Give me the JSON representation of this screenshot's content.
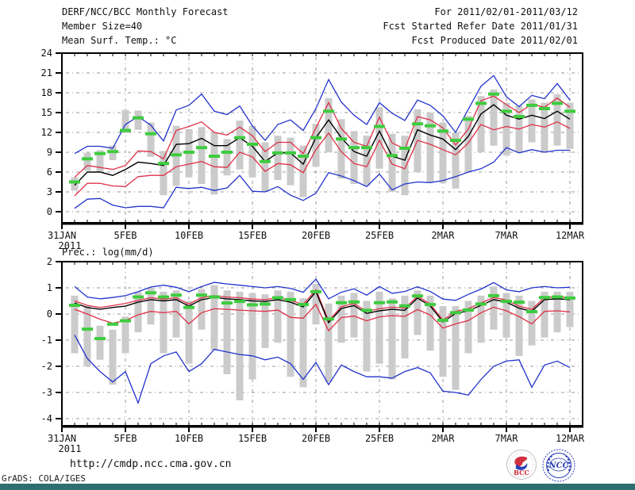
{
  "header": {
    "title": "DERF/NCC/BCC Monthly Forecast",
    "member_size": "Member Size=40",
    "period": "For 2011/02/01-2011/03/12",
    "refer_date": "Fcst Started Refer Date 2011/01/31",
    "produced_date": "Fcst Produced Date 2011/02/01"
  },
  "footer": {
    "url": "http://cmdp.ncc.cma.gov.cn",
    "grads_credit": "GrADS: COLA/IGES",
    "logos": [
      {
        "name": "bcc-logo",
        "label": "BCC"
      },
      {
        "name": "ncc-logo",
        "label": "NCC"
      }
    ]
  },
  "colors": {
    "blue": "#2233cc",
    "red": "#e03048",
    "green": "#3ecc3e",
    "black": "#000000",
    "bar": "#cbcbcb",
    "grid": "#999999",
    "frame": "#000000",
    "text": "#111111",
    "logo_blue": "#2a3fb8",
    "logo_red": "#cc2233",
    "strip": "#2e6e6e"
  },
  "chart_data": [
    {
      "type": "line",
      "title": "Mean Surf. Temp.: °C",
      "x_ticklabels": [
        "31JAN",
        "5FEB",
        "10FEB",
        "15FEB",
        "20FEB",
        "25FEB",
        "2MAR",
        "7MAR",
        "12MAR"
      ],
      "x_tick_days": [
        0,
        5,
        10,
        15,
        20,
        25,
        30,
        35,
        40
      ],
      "x_year": "2011",
      "x_range_days": [
        0,
        41
      ],
      "ylim": [
        -1.7,
        24
      ],
      "yticks": [
        0,
        3,
        6,
        9,
        12,
        15,
        18,
        21,
        24
      ],
      "grid": true,
      "legend": "none",
      "series": [
        {
          "name": "ensemble-max",
          "color": "blue",
          "values": [
            8.8,
            9.9,
            9.9,
            9.6,
            13.2,
            14.4,
            13.1,
            10.7,
            15.4,
            16.1,
            17.8,
            15.2,
            14.7,
            16.0,
            13.0,
            10.8,
            13.2,
            13.9,
            12.3,
            15.6,
            20.0,
            16.6,
            14.6,
            13.2,
            16.5,
            14.9,
            13.8,
            16.9,
            16.1,
            14.5,
            12.0,
            15.5,
            19.0,
            20.6,
            17.4,
            15.9,
            17.6,
            17.1,
            19.4,
            16.9
          ]
        },
        {
          "name": "percentile-upper",
          "color": "red",
          "values": [
            5.2,
            7.0,
            6.7,
            6.4,
            7.0,
            9.2,
            9.1,
            8.0,
            12.3,
            12.9,
            13.6,
            12.0,
            11.6,
            12.8,
            11.5,
            9.1,
            10.5,
            10.5,
            8.8,
            12.7,
            16.5,
            12.6,
            10.5,
            9.9,
            14.3,
            10.4,
            9.5,
            14.4,
            13.9,
            12.7,
            10.1,
            12.5,
            16.8,
            17.5,
            16.2,
            15.0,
            16.3,
            15.8,
            17.2,
            15.8
          ]
        },
        {
          "name": "ensemble-mean",
          "color": "black",
          "values": [
            4.0,
            6.0,
            6.0,
            5.5,
            6.4,
            7.5,
            7.3,
            7.0,
            10.2,
            10.3,
            11.1,
            10.0,
            10.0,
            11.2,
            9.9,
            7.6,
            8.9,
            8.9,
            7.2,
            11.2,
            13.9,
            11.2,
            9.1,
            8.4,
            12.2,
            8.4,
            7.8,
            12.4,
            11.6,
            11.0,
            9.4,
            11.4,
            14.8,
            16.2,
            14.6,
            14.0,
            14.6,
            14.1,
            15.2,
            14.0
          ]
        },
        {
          "name": "percentile-lower",
          "color": "red",
          "values": [
            2.4,
            4.3,
            4.3,
            3.9,
            3.8,
            5.3,
            5.5,
            5.5,
            6.8,
            7.2,
            7.6,
            6.8,
            6.7,
            9.0,
            8.3,
            6.1,
            7.3,
            7.1,
            5.9,
            9.4,
            11.9,
            9.1,
            7.3,
            6.8,
            10.8,
            7.2,
            6.5,
            10.8,
            10.2,
            9.4,
            8.6,
            10.4,
            13.2,
            12.4,
            12.9,
            12.5,
            13.2,
            12.8,
            13.6,
            12.6
          ]
        },
        {
          "name": "ensemble-min",
          "color": "blue",
          "values": [
            0.5,
            1.9,
            2.0,
            1.0,
            0.6,
            0.8,
            0.8,
            0.6,
            3.7,
            3.5,
            3.7,
            3.2,
            3.6,
            5.5,
            3.1,
            3.0,
            3.8,
            2.5,
            1.7,
            2.8,
            5.9,
            5.4,
            4.7,
            3.8,
            5.7,
            3.3,
            4.2,
            4.5,
            4.4,
            4.7,
            5.3,
            6.0,
            6.5,
            7.5,
            9.7,
            8.9,
            9.4,
            9.0,
            9.3,
            9.3
          ]
        },
        {
          "name": "observation",
          "color": "green",
          "marker": "dash",
          "values": [
            4.5,
            8.0,
            8.8,
            9.1,
            12.3,
            14.2,
            11.8,
            7.3,
            8.6,
            9.0,
            9.7,
            8.4,
            9.0,
            11.2,
            10.2,
            7.6,
            8.9,
            8.9,
            8.4,
            11.2,
            15.2,
            11.0,
            9.7,
            9.7,
            12.9,
            8.5,
            9.6,
            13.3,
            13.0,
            12.2,
            10.8,
            14.0,
            16.4,
            17.8,
            15.2,
            14.4,
            16.1,
            15.6,
            16.4,
            15.2
          ]
        }
      ],
      "bars": {
        "name": "ensemble-spread-bar",
        "ranges": [
          [
            3.2,
            5.2
          ],
          [
            6.2,
            8.9
          ],
          [
            6.0,
            9.3
          ],
          [
            7.8,
            10.0
          ],
          [
            11.9,
            15.4
          ],
          [
            12.4,
            15.3
          ],
          [
            8.3,
            13.5
          ],
          [
            2.5,
            9.2
          ],
          [
            3.9,
            13.0
          ],
          [
            5.2,
            12.5
          ],
          [
            4.2,
            12.8
          ],
          [
            2.6,
            12.0
          ],
          [
            5.5,
            11.0
          ],
          [
            6.4,
            13.8
          ],
          [
            5.2,
            13.0
          ],
          [
            3.0,
            10.5
          ],
          [
            4.8,
            11.5
          ],
          [
            4.0,
            11.2
          ],
          [
            2.2,
            10.0
          ],
          [
            6.8,
            13.3
          ],
          [
            9.0,
            17.2
          ],
          [
            5.0,
            14.0
          ],
          [
            4.2,
            12.2
          ],
          [
            4.0,
            11.5
          ],
          [
            6.5,
            15.8
          ],
          [
            3.0,
            11.8
          ],
          [
            2.5,
            11.5
          ],
          [
            6.0,
            15.5
          ],
          [
            4.5,
            15.0
          ],
          [
            4.3,
            13.5
          ],
          [
            3.5,
            12.0
          ],
          [
            6.0,
            14.5
          ],
          [
            9.0,
            17.5
          ],
          [
            10.0,
            18.5
          ],
          [
            8.5,
            16.5
          ],
          [
            9.0,
            16.0
          ],
          [
            10.5,
            17.0
          ],
          [
            9.0,
            16.5
          ],
          [
            10.0,
            17.8
          ],
          [
            9.5,
            16.5
          ]
        ]
      }
    },
    {
      "type": "line",
      "title": "Prec.: log(mm/d)",
      "x_ticklabels": [
        "31JAN",
        "5FEB",
        "10FEB",
        "15FEB",
        "20FEB",
        "25FEB",
        "2MAR",
        "7MAR",
        "12MAR"
      ],
      "x_tick_days": [
        0,
        5,
        10,
        15,
        20,
        25,
        30,
        35,
        40
      ],
      "x_year": "2011",
      "x_range_days": [
        0,
        41
      ],
      "ylim": [
        -4.27,
        2
      ],
      "yticks": [
        2,
        1,
        0,
        -1,
        -2,
        -3,
        -4
      ],
      "grid": true,
      "legend": "none",
      "series": [
        {
          "name": "ensemble-max",
          "color": "blue",
          "values": [
            1.05,
            0.65,
            0.58,
            0.63,
            0.7,
            0.85,
            1.03,
            1.1,
            1.02,
            0.85,
            1.05,
            1.21,
            1.15,
            1.1,
            1.05,
            1.0,
            1.05,
            0.98,
            0.83,
            1.33,
            0.58,
            0.83,
            0.96,
            0.72,
            1.05,
            0.79,
            0.86,
            1.04,
            0.86,
            0.57,
            0.52,
            0.75,
            0.95,
            1.2,
            0.92,
            0.85,
            1.0,
            1.05,
            1.0,
            1.02
          ]
        },
        {
          "name": "percentile-upper",
          "color": "red",
          "values": [
            0.5,
            0.33,
            0.25,
            0.32,
            0.4,
            0.52,
            0.62,
            0.57,
            0.62,
            0.38,
            0.62,
            0.7,
            0.65,
            0.62,
            0.57,
            0.55,
            0.62,
            0.52,
            0.36,
            0.93,
            -0.26,
            0.28,
            0.4,
            0.1,
            0.2,
            0.26,
            0.22,
            0.68,
            0.38,
            -0.23,
            0.1,
            0.2,
            0.42,
            0.63,
            0.53,
            0.3,
            0.18,
            0.63,
            0.66,
            0.63
          ]
        },
        {
          "name": "ensemble-mean",
          "color": "black",
          "values": [
            0.42,
            0.25,
            0.18,
            0.25,
            0.3,
            0.45,
            0.55,
            0.5,
            0.55,
            0.3,
            0.55,
            0.63,
            0.58,
            0.55,
            0.5,
            0.48,
            0.55,
            0.45,
            0.27,
            0.85,
            -0.33,
            0.21,
            0.32,
            0.02,
            0.12,
            0.18,
            0.14,
            0.61,
            0.31,
            -0.3,
            0.02,
            0.12,
            0.33,
            0.55,
            0.45,
            0.22,
            0.1,
            0.55,
            0.58,
            0.55
          ]
        },
        {
          "name": "percentile-lower",
          "color": "red",
          "values": [
            0.18,
            0.0,
            -0.2,
            -0.35,
            -0.25,
            -0.03,
            0.1,
            0.05,
            0.1,
            -0.38,
            0.05,
            0.2,
            0.18,
            0.15,
            0.12,
            0.1,
            0.15,
            -0.13,
            -0.16,
            0.37,
            -0.64,
            -0.14,
            -0.08,
            -0.26,
            -0.11,
            -0.06,
            -0.09,
            0.17,
            -0.04,
            -0.54,
            -0.38,
            -0.25,
            0.05,
            0.26,
            0.12,
            -0.1,
            -0.38,
            0.1,
            0.12,
            0.08
          ]
        },
        {
          "name": "ensemble-min",
          "color": "blue",
          "values": [
            -0.8,
            -1.7,
            -2.2,
            -2.6,
            -2.2,
            -3.4,
            -1.9,
            -1.6,
            -1.45,
            -2.2,
            -1.9,
            -1.35,
            -1.45,
            -1.55,
            -1.6,
            -1.75,
            -1.65,
            -1.9,
            -2.5,
            -1.85,
            -2.7,
            -1.95,
            -2.2,
            -2.4,
            -2.4,
            -2.45,
            -2.2,
            -2.05,
            -2.25,
            -2.95,
            -3.0,
            -3.1,
            -2.5,
            -2.0,
            -1.8,
            -1.75,
            -2.8,
            -1.95,
            -1.8,
            -2.05
          ]
        },
        {
          "name": "observation",
          "color": "green",
          "marker": "dash",
          "values": [
            0.33,
            -0.58,
            -0.94,
            -0.39,
            -0.26,
            0.65,
            0.81,
            0.65,
            0.72,
            0.25,
            0.72,
            0.65,
            0.42,
            0.48,
            0.35,
            0.38,
            0.62,
            0.55,
            0.36,
            0.85,
            -0.19,
            0.43,
            0.46,
            0.14,
            0.43,
            0.46,
            0.31,
            0.69,
            0.36,
            -0.24,
            0.05,
            0.15,
            0.38,
            0.7,
            0.48,
            0.45,
            0.09,
            0.63,
            0.65,
            0.61
          ]
        }
      ],
      "bars": {
        "name": "ensemble-spread-bar",
        "ranges": [
          [
            -1.5,
            0.7
          ],
          [
            -2.0,
            0.3
          ],
          [
            -1.75,
            -0.45
          ],
          [
            -2.7,
            -0.6
          ],
          [
            -1.5,
            -0.1
          ],
          [
            -0.7,
            0.85
          ],
          [
            -0.4,
            1.0
          ],
          [
            -1.5,
            0.85
          ],
          [
            -0.9,
            0.9
          ],
          [
            -1.9,
            0.5
          ],
          [
            -0.6,
            0.95
          ],
          [
            -1.4,
            1.1
          ],
          [
            -2.3,
            0.9
          ],
          [
            -3.3,
            0.85
          ],
          [
            -2.5,
            0.8
          ],
          [
            -1.3,
            0.75
          ],
          [
            -1.1,
            0.9
          ],
          [
            -2.4,
            0.85
          ],
          [
            -2.8,
            0.6
          ],
          [
            -0.4,
            1.15
          ],
          [
            -2.6,
            0.4
          ],
          [
            -1.1,
            0.7
          ],
          [
            -0.9,
            0.8
          ],
          [
            -2.2,
            0.5
          ],
          [
            -1.9,
            0.85
          ],
          [
            -2.5,
            0.6
          ],
          [
            -1.7,
            0.7
          ],
          [
            -0.8,
            0.9
          ],
          [
            -1.4,
            0.7
          ],
          [
            -2.4,
            0.3
          ],
          [
            -2.9,
            0.3
          ],
          [
            -1.5,
            0.5
          ],
          [
            -1.1,
            0.7
          ],
          [
            -0.6,
            1.05
          ],
          [
            -0.9,
            0.8
          ],
          [
            -1.6,
            0.7
          ],
          [
            -1.2,
            0.5
          ],
          [
            -0.9,
            0.85
          ],
          [
            -0.7,
            0.85
          ],
          [
            -0.5,
            0.85
          ]
        ]
      }
    }
  ]
}
